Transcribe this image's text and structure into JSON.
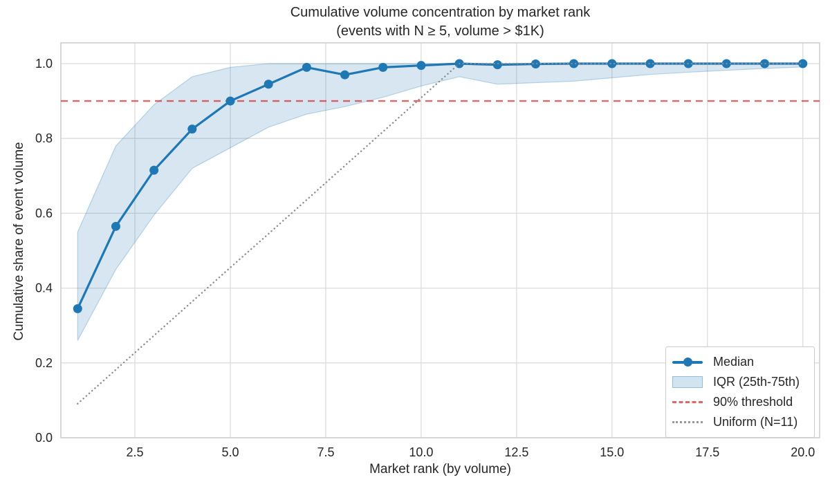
{
  "title": {
    "line1": "Cumulative volume concentration by market rank",
    "line2": "(events with N ≥ 5, volume > $1K)"
  },
  "legend": {
    "position": "lower right",
    "items": [
      {
        "label": "Median"
      },
      {
        "label": "IQR (25th-75th)"
      },
      {
        "label": "90% threshold"
      },
      {
        "label": "Uniform (N=11)"
      }
    ]
  },
  "chart_data": {
    "type": "line",
    "title": "Cumulative volume concentration by market rank",
    "subtitle": "(events with N ≥ 5, volume > $1K)",
    "xlabel": "Market rank (by volume)",
    "ylabel": "Cumulative share of event volume",
    "xlim": [
      0.56,
      20.44
    ],
    "ylim": [
      0.0,
      1.0554
    ],
    "grid": true,
    "legend_position": "lower right",
    "x_ticks": [
      2.5,
      5.0,
      7.5,
      10.0,
      12.5,
      15.0,
      17.5,
      20.0
    ],
    "x_tick_labels": [
      "2.5",
      "5.0",
      "7.5",
      "10.0",
      "12.5",
      "15.0",
      "17.5",
      "20.0"
    ],
    "y_ticks": [
      0.0,
      0.2,
      0.4,
      0.6,
      0.8,
      1.0
    ],
    "y_tick_labels": [
      "0.0",
      "0.2",
      "0.4",
      "0.6",
      "0.8",
      "1.0"
    ],
    "x": [
      1,
      2,
      3,
      4,
      5,
      6,
      7,
      8,
      9,
      10,
      11,
      12,
      13,
      14,
      15,
      16,
      17,
      18,
      19,
      20
    ],
    "series": [
      {
        "name": "Median",
        "type": "line",
        "style": "solid-markers",
        "color": "#1f77b4",
        "values": [
          0.345,
          0.565,
          0.715,
          0.825,
          0.9,
          0.945,
          0.99,
          0.97,
          0.99,
          0.995,
          1.0,
          0.997,
          0.999,
          1.0,
          1.0,
          1.0,
          1.0,
          1.0,
          1.0,
          1.0
        ]
      },
      {
        "name": "IQR (25th-75th)",
        "type": "band",
        "color": "#1f77b4",
        "fill_opacity": 0.18,
        "lower": [
          0.26,
          0.45,
          0.595,
          0.72,
          0.775,
          0.83,
          0.865,
          0.885,
          0.91,
          0.94,
          0.965,
          0.945,
          0.949,
          0.953,
          0.962,
          0.971,
          0.977,
          0.982,
          0.987,
          0.991
        ],
        "upper": [
          0.55,
          0.78,
          0.89,
          0.965,
          0.99,
          1.0,
          1.0,
          1.0,
          1.0,
          1.0,
          1.0,
          1.0,
          1.0,
          1.0,
          1.0,
          1.0,
          1.0,
          1.0,
          1.0,
          1.0
        ]
      },
      {
        "name": "90% threshold",
        "type": "hline",
        "style": "dashed",
        "color": "#d62728",
        "value": 0.9
      },
      {
        "name": "Uniform (N=11)",
        "type": "line",
        "style": "dotted",
        "color": "#8c8c8c",
        "values": [
          0.091,
          0.182,
          0.273,
          0.364,
          0.455,
          0.545,
          0.636,
          0.727,
          0.818,
          0.909,
          1.0,
          1.0,
          1.0,
          1.0,
          1.0,
          1.0,
          1.0,
          1.0,
          1.0,
          1.0
        ]
      }
    ],
    "colors": {
      "median": "#1f77b4",
      "band": "#1f77b4",
      "threshold": "#d62728",
      "uniform": "#8c8c8c",
      "grid": "#dcdcdc",
      "frame": "#cccccc",
      "text": "#262626"
    }
  }
}
